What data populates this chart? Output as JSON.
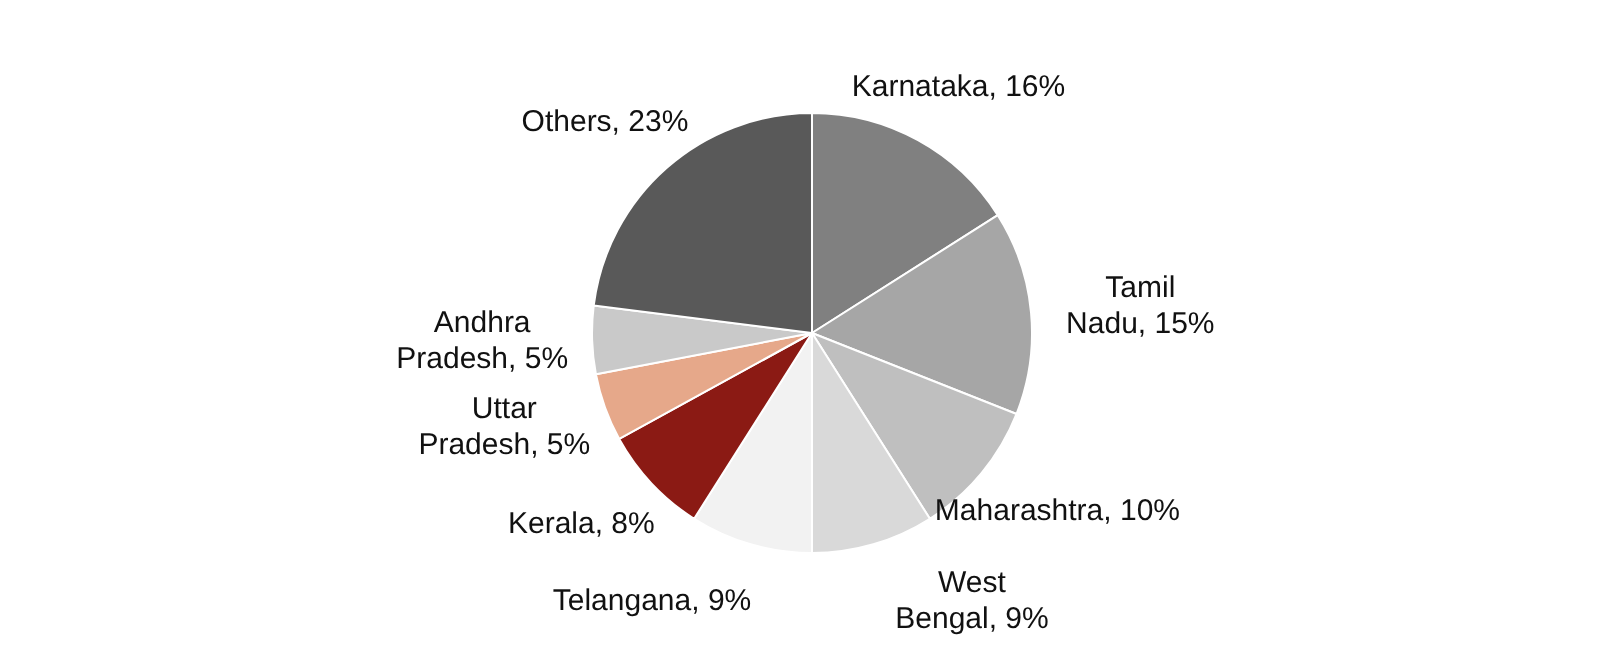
{
  "chart_data": {
    "type": "pie",
    "categories": [
      "Karnataka",
      "Tamil Nadu",
      "Maharashtra",
      "West Bengal",
      "Telangana",
      "Kerala",
      "Uttar Pradesh",
      "Andhra Pradesh",
      "Others"
    ],
    "values": [
      16,
      15,
      10,
      9,
      9,
      8,
      5,
      5,
      23
    ],
    "colors": [
      "#808080",
      "#a6a6a6",
      "#bfbfbf",
      "#d9d9d9",
      "#f2f2f2",
      "#8b1a14",
      "#e6a88a",
      "#c9c9c9",
      "#595959"
    ],
    "value_labels": [
      "16%",
      "15%",
      "10%",
      "9%",
      "9%",
      "8%",
      "5%",
      "5%",
      "23%"
    ],
    "legend": false
  }
}
